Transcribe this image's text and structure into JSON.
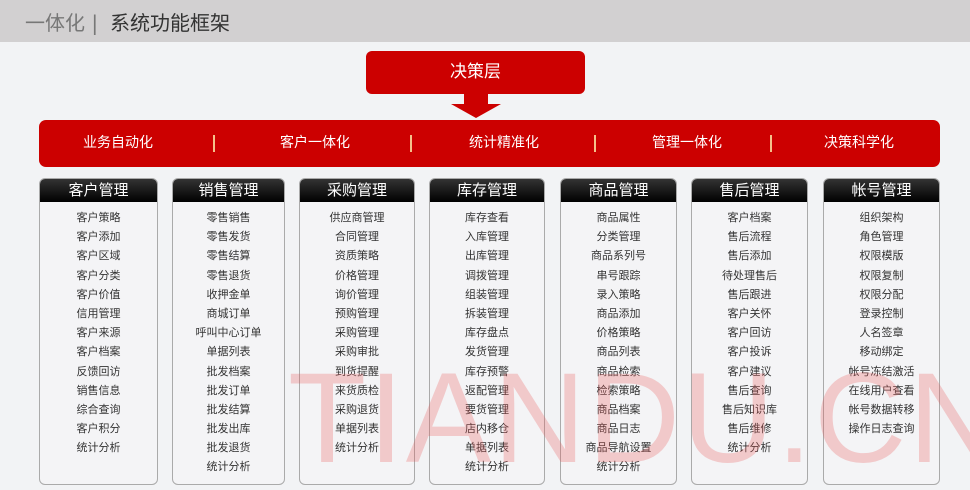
{
  "header": {
    "prefix": "一体化 |",
    "title": "系统功能框架"
  },
  "decision_layer": "决策层",
  "colors": {
    "accent": "#cc0000",
    "header_bg": "#d2d0d1",
    "column_header": "#000000"
  },
  "features": [
    "业务自动化",
    "客户一体化",
    "统计精准化",
    "管理一体化",
    "决策科学化"
  ],
  "modules": [
    {
      "title": "客户管理",
      "items": [
        "客户策略",
        "客户添加",
        "客户区域",
        "客户分类",
        "客户价值",
        "信用管理",
        "客户来源",
        "客户档案",
        "反馈回访",
        "销售信息",
        "综合查询",
        "客户积分",
        "统计分析"
      ]
    },
    {
      "title": "销售管理",
      "items": [
        "零售销售",
        "零售发货",
        "零售结算",
        "零售退货",
        "收押金单",
        "商城订单",
        "呼叫中心订单",
        "单据列表",
        "批发档案",
        "批发订单",
        "批发结算",
        "批发出库",
        "批发退货",
        "统计分析"
      ]
    },
    {
      "title": "采购管理",
      "items": [
        "供应商管理",
        "合同管理",
        "资质策略",
        "价格管理",
        "询价管理",
        "预购管理",
        "采购管理",
        "采购审批",
        "到货提醒",
        "来货质检",
        "采购退货",
        "单据列表",
        "统计分析"
      ]
    },
    {
      "title": "库存管理",
      "items": [
        "库存查看",
        "入库管理",
        "出库管理",
        "调拨管理",
        "组装管理",
        "拆装管理",
        "库存盘点",
        "发货管理",
        "库存预警",
        "返配管理",
        "要货管理",
        "店内移仓",
        "单据列表",
        "统计分析"
      ]
    },
    {
      "title": "商品管理",
      "items": [
        "商品属性",
        "分类管理",
        "商品系列号",
        "串号跟踪",
        "录入策略",
        "商品添加",
        "价格策略",
        "商品列表",
        "商品检索",
        "检索策略",
        "商品档案",
        "商品日志",
        "商品导航设置",
        "统计分析"
      ]
    },
    {
      "title": "售后管理",
      "items": [
        "客户档案",
        "售后流程",
        "售后添加",
        "待处理售后",
        "售后跟进",
        "客户关怀",
        "客户回访",
        "客户投诉",
        "客户建议",
        "售后查询",
        "售后知识库",
        "售后维修",
        "统计分析"
      ]
    },
    {
      "title": "帐号管理",
      "items": [
        "组织架构",
        "角色管理",
        "权限模版",
        "权限复制",
        "权限分配",
        "登录控制",
        "人名签章",
        "移动绑定",
        "帐号冻结激活",
        "在线用户查看",
        "帐号数据转移",
        "操作日志查询"
      ]
    }
  ],
  "watermark": "TIANDU.CN"
}
